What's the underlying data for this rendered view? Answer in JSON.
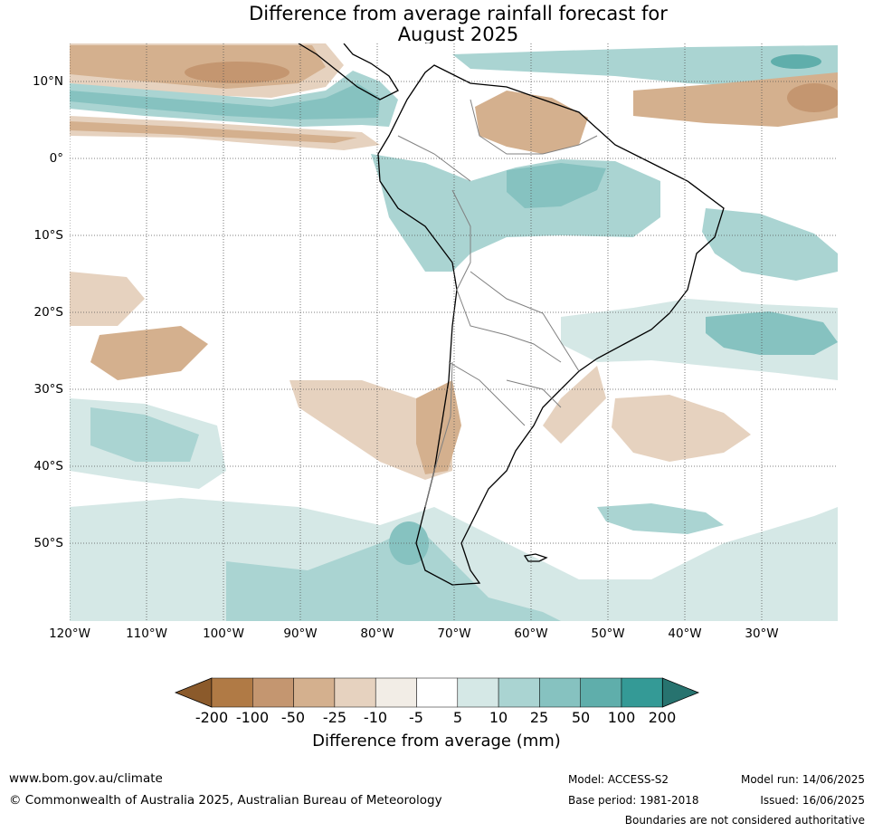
{
  "title_line1": "Difference from average rainfall forecast for",
  "title_line2": "August 2025",
  "lat_labels": [
    "10°N",
    "0°",
    "10°S",
    "20°S",
    "30°S",
    "40°S",
    "50°S"
  ],
  "lon_labels": [
    "120°W",
    "110°W",
    "100°W",
    "90°W",
    "80°W",
    "70°W",
    "60°W",
    "50°W",
    "40°W",
    "30°W"
  ],
  "colorbar": {
    "title": "Difference from average (mm)",
    "ticks": [
      "-200",
      "-100",
      "-50",
      "-25",
      "-10",
      "-5",
      "5",
      "10",
      "25",
      "50",
      "100",
      "200"
    ],
    "colors": [
      "#8b5a2b",
      "#b07a45",
      "#c49670",
      "#d4b08e",
      "#e6d2bf",
      "#f2ede6",
      "#ffffff",
      "#d5e8e6",
      "#aad4d2",
      "#86c2c0",
      "#5faeab",
      "#349a96",
      "#27736f"
    ]
  },
  "footer": {
    "website": "www.bom.gov.au/climate",
    "copyright": "© Commonwealth of Australia 2025, Australian Bureau of Meteorology",
    "model": "Model: ACCESS-S2",
    "model_run": "Model run: 14/06/2025",
    "base_period": "Base period: 1981-2018",
    "issued": "Issued: 16/06/2025",
    "disclaimer": "Boundaries are not considered authoritative"
  },
  "map": {
    "extent": {
      "lon_min": -120,
      "lon_max": -20,
      "lat_min": -60,
      "lat_max": 15
    },
    "land_color": "#ffffff",
    "coast_color": "#000000",
    "border_color": "#808080"
  }
}
